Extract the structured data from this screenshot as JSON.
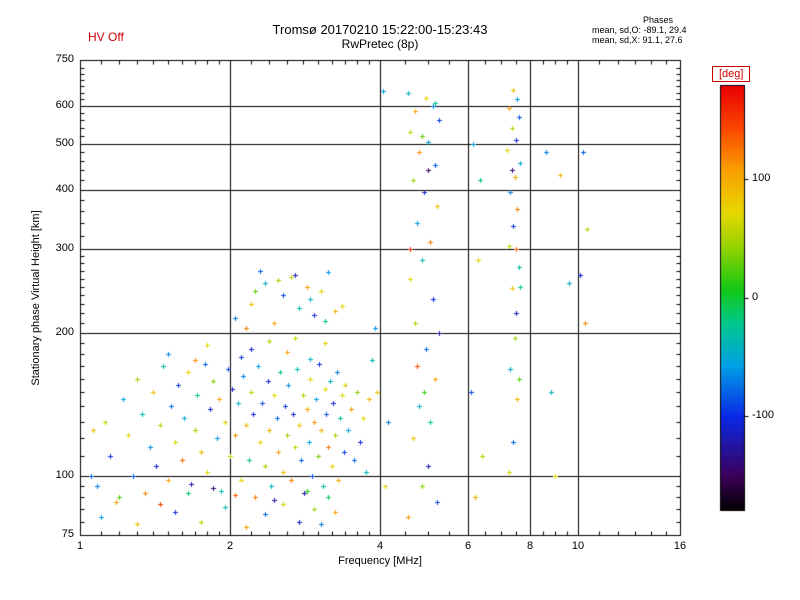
{
  "header": {
    "hv_status": "HV Off",
    "title": "Tromsø 20170210 15:22:00-15:23:43",
    "subtitle": "RwPretec (8p)",
    "phases": {
      "heading": "Phases",
      "o_line": "mean, sd,O: -89.1, 29.4",
      "x_line": "mean, sd,X:  91.1, 27.6"
    }
  },
  "colors": {
    "annotation_red": "#cc0000",
    "axis_black": "#000000"
  },
  "chart_data": {
    "type": "scatter",
    "title": "Tromsø 20170210 15:22:00-15:23:43",
    "subtitle": "RwPretec (8p)",
    "xlabel": "Frequency [MHz]",
    "ylabel": "Stationary phase Virtual Height [km]",
    "x_scale": "log",
    "y_scale": "log",
    "xlim": [
      1,
      16
    ],
    "ylim": [
      75,
      750
    ],
    "x_ticks": [
      1,
      2,
      4,
      6,
      8,
      10,
      16
    ],
    "y_ticks": [
      75,
      100,
      200,
      300,
      400,
      500,
      600,
      750
    ],
    "grid": true,
    "colorbar": {
      "label": "[deg]",
      "ticks": [
        100,
        0,
        -100
      ],
      "range": [
        -180,
        180
      ],
      "orientation": "vertical",
      "position": "right"
    },
    "point_format": [
      "frequency_MHz",
      "virtual_height_km",
      "phase_deg"
    ],
    "points": [
      [
        1.08,
        95,
        -70
      ],
      [
        1.12,
        130,
        60
      ],
      [
        1.15,
        110,
        -100
      ],
      [
        1.18,
        88,
        110
      ],
      [
        1.22,
        145,
        -55
      ],
      [
        1.25,
        122,
        75
      ],
      [
        1.28,
        100,
        -85
      ],
      [
        1.3,
        160,
        45
      ],
      [
        1.33,
        135,
        -40
      ],
      [
        1.35,
        92,
        120
      ],
      [
        1.38,
        115,
        -65
      ],
      [
        1.4,
        150,
        90
      ],
      [
        1.42,
        105,
        -110
      ],
      [
        1.45,
        128,
        55
      ],
      [
        1.47,
        170,
        -30
      ],
      [
        1.5,
        98,
        100
      ],
      [
        1.52,
        140,
        -75
      ],
      [
        1.55,
        118,
        65
      ],
      [
        1.57,
        155,
        -95
      ],
      [
        1.6,
        108,
        130
      ],
      [
        1.62,
        132,
        -50
      ],
      [
        1.65,
        165,
        80
      ],
      [
        1.67,
        96,
        -120
      ],
      [
        1.7,
        125,
        50
      ],
      [
        1.72,
        148,
        -20
      ],
      [
        1.75,
        112,
        95
      ],
      [
        1.78,
        172,
        -80
      ],
      [
        1.8,
        102,
        70
      ],
      [
        1.82,
        138,
        -105
      ],
      [
        1.85,
        158,
        40
      ],
      [
        1.88,
        120,
        -60
      ],
      [
        1.9,
        145,
        105
      ],
      [
        1.92,
        93,
        -35
      ],
      [
        1.95,
        130,
        85
      ],
      [
        1.98,
        168,
        -90
      ],
      [
        2.0,
        110,
        60
      ],
      [
        2.02,
        152,
        -115
      ],
      [
        2.05,
        122,
        115
      ],
      [
        2.08,
        142,
        -45
      ],
      [
        2.1,
        98,
        75
      ],
      [
        2.12,
        162,
        -70
      ],
      [
        2.15,
        128,
        95
      ],
      [
        2.18,
        108,
        -25
      ],
      [
        2.2,
        150,
        55
      ],
      [
        2.22,
        135,
        -100
      ],
      [
        2.25,
        90,
        125
      ],
      [
        2.28,
        170,
        -55
      ],
      [
        2.3,
        118,
        80
      ],
      [
        2.32,
        142,
        -85
      ],
      [
        2.35,
        105,
        50
      ],
      [
        2.38,
        158,
        -110
      ],
      [
        2.4,
        125,
        100
      ],
      [
        2.42,
        95,
        -40
      ],
      [
        2.45,
        148,
        70
      ],
      [
        2.48,
        132,
        -75
      ],
      [
        2.5,
        112,
        110
      ],
      [
        2.52,
        165,
        -20
      ],
      [
        2.55,
        102,
        85
      ],
      [
        2.58,
        140,
        -95
      ],
      [
        2.6,
        122,
        45
      ],
      [
        2.62,
        155,
        -65
      ],
      [
        2.65,
        98,
        120
      ],
      [
        2.68,
        135,
        -105
      ],
      [
        2.7,
        115,
        60
      ],
      [
        2.72,
        168,
        -35
      ],
      [
        2.75,
        128,
        90
      ],
      [
        2.78,
        108,
        -80
      ],
      [
        2.8,
        148,
        55
      ],
      [
        2.82,
        92,
        -120
      ],
      [
        2.85,
        138,
        105
      ],
      [
        2.88,
        118,
        -50
      ],
      [
        2.9,
        160,
        75
      ],
      [
        2.92,
        100,
        -90
      ],
      [
        2.95,
        130,
        115
      ],
      [
        2.98,
        145,
        -60
      ],
      [
        3.0,
        110,
        35
      ],
      [
        3.02,
        172,
        -100
      ],
      [
        3.05,
        125,
        95
      ],
      [
        3.08,
        95,
        -30
      ],
      [
        3.1,
        152,
        70
      ],
      [
        3.12,
        135,
        -85
      ],
      [
        3.15,
        115,
        125
      ],
      [
        3.18,
        158,
        -45
      ],
      [
        3.2,
        105,
        80
      ],
      [
        3.22,
        142,
        -110
      ],
      [
        3.25,
        122,
        50
      ],
      [
        3.28,
        165,
        -70
      ],
      [
        3.3,
        98,
        100
      ],
      [
        3.33,
        132,
        -25
      ],
      [
        3.35,
        148,
        65
      ],
      [
        3.38,
        112,
        -95
      ],
      [
        3.4,
        155,
        85
      ],
      [
        3.45,
        125,
        -55
      ],
      [
        3.5,
        138,
        110
      ],
      [
        3.55,
        108,
        -75
      ],
      [
        3.6,
        150,
        40
      ],
      [
        3.65,
        118,
        -105
      ],
      [
        3.7,
        132,
        75
      ],
      [
        3.75,
        102,
        -40
      ],
      [
        3.8,
        145,
        95
      ],
      [
        1.1,
        82,
        -60
      ],
      [
        1.3,
        79,
        90
      ],
      [
        1.55,
        84,
        -100
      ],
      [
        1.75,
        80,
        55
      ],
      [
        1.95,
        86,
        -35
      ],
      [
        2.15,
        78,
        105
      ],
      [
        2.35,
        83,
        -80
      ],
      [
        2.55,
        87,
        65
      ],
      [
        2.75,
        80,
        -115
      ],
      [
        2.95,
        85,
        45
      ],
      [
        3.05,
        79,
        -70
      ],
      [
        3.25,
        84,
        100
      ],
      [
        1.2,
        90,
        25
      ],
      [
        1.65,
        92,
        -15
      ],
      [
        2.05,
        91,
        135
      ],
      [
        2.45,
        89,
        -125
      ],
      [
        2.85,
        93,
        15
      ],
      [
        3.15,
        90,
        -10
      ],
      [
        1.45,
        87,
        150
      ],
      [
        1.85,
        94,
        -140
      ],
      [
        1.5,
        180,
        -65
      ],
      [
        1.8,
        188,
        70
      ],
      [
        2.1,
        178,
        -95
      ],
      [
        2.4,
        192,
        55
      ],
      [
        2.6,
        182,
        100
      ],
      [
        2.9,
        176,
        -45
      ],
      [
        3.1,
        190,
        80
      ],
      [
        2.2,
        185,
        -110
      ],
      [
        2.7,
        195,
        60
      ],
      [
        1.7,
        175,
        115
      ],
      [
        2.05,
        215,
        -70
      ],
      [
        2.2,
        230,
        85
      ],
      [
        2.35,
        255,
        -50
      ],
      [
        2.45,
        210,
        100
      ],
      [
        2.55,
        240,
        -90
      ],
      [
        2.65,
        262,
        60
      ],
      [
        2.75,
        225,
        -30
      ],
      [
        2.85,
        250,
        110
      ],
      [
        2.95,
        218,
        -105
      ],
      [
        3.05,
        245,
        75
      ],
      [
        3.15,
        268,
        -60
      ],
      [
        3.25,
        222,
        95
      ],
      [
        2.3,
        270,
        -80
      ],
      [
        2.5,
        258,
        50
      ],
      [
        2.15,
        205,
        120
      ],
      [
        2.9,
        235,
        -40
      ],
      [
        3.35,
        228,
        70
      ],
      [
        2.7,
        265,
        -115
      ],
      [
        2.25,
        245,
        30
      ],
      [
        3.1,
        212,
        -20
      ],
      [
        4.55,
        640,
        -40
      ],
      [
        4.95,
        625,
        80
      ],
      [
        5.1,
        600,
        -70
      ],
      [
        4.7,
        585,
        100
      ],
      [
        5.25,
        560,
        -95
      ],
      [
        4.6,
        530,
        60
      ],
      [
        5.0,
        505,
        -55
      ],
      [
        4.8,
        480,
        115
      ],
      [
        5.15,
        450,
        -85
      ],
      [
        4.65,
        420,
        45
      ],
      [
        4.9,
        395,
        -110
      ],
      [
        5.2,
        370,
        90
      ],
      [
        4.75,
        340,
        -60
      ],
      [
        5.05,
        310,
        125
      ],
      [
        4.85,
        285,
        -35
      ],
      [
        4.6,
        260,
        70
      ],
      [
        5.1,
        235,
        -100
      ],
      [
        4.7,
        210,
        55
      ],
      [
        4.95,
        185,
        -75
      ],
      [
        5.15,
        160,
        105
      ],
      [
        4.8,
        140,
        -50
      ],
      [
        4.65,
        120,
        85
      ],
      [
        5.0,
        105,
        -120
      ],
      [
        4.85,
        95,
        40
      ],
      [
        5.2,
        88,
        -90
      ],
      [
        4.55,
        82,
        110
      ],
      [
        4.9,
        150,
        20
      ],
      [
        5.05,
        130,
        -15
      ],
      [
        4.75,
        170,
        140
      ],
      [
        5.25,
        200,
        -130
      ],
      [
        4.6,
        300,
        160
      ],
      [
        5.0,
        440,
        -150
      ],
      [
        4.85,
        520,
        30
      ],
      [
        5.15,
        610,
        -25
      ],
      [
        7.4,
        650,
        90
      ],
      [
        7.55,
        620,
        -60
      ],
      [
        7.25,
        595,
        110
      ],
      [
        7.6,
        570,
        -85
      ],
      [
        7.35,
        540,
        55
      ],
      [
        7.5,
        510,
        -105
      ],
      [
        7.2,
        485,
        75
      ],
      [
        7.65,
        455,
        -45
      ],
      [
        7.45,
        425,
        100
      ],
      [
        7.3,
        395,
        -70
      ],
      [
        7.55,
        365,
        120
      ],
      [
        7.4,
        335,
        -95
      ],
      [
        7.25,
        305,
        60
      ],
      [
        7.6,
        275,
        -30
      ],
      [
        7.35,
        248,
        85
      ],
      [
        7.5,
        220,
        -115
      ],
      [
        7.45,
        195,
        45
      ],
      [
        7.3,
        168,
        -55
      ],
      [
        7.55,
        145,
        95
      ],
      [
        7.4,
        118,
        -80
      ],
      [
        7.25,
        102,
        65
      ],
      [
        7.65,
        250,
        -20
      ],
      [
        7.5,
        300,
        135
      ],
      [
        7.35,
        440,
        -140
      ],
      [
        7.6,
        160,
        25
      ],
      [
        6.15,
        500,
        -60
      ],
      [
        6.3,
        285,
        80
      ],
      [
        6.1,
        150,
        -90
      ],
      [
        6.4,
        110,
        55
      ],
      [
        8.6,
        480,
        -70
      ],
      [
        9.2,
        430,
        95
      ],
      [
        9.6,
        255,
        -50
      ],
      [
        10.2,
        480,
        -85
      ],
      [
        10.4,
        330,
        60
      ],
      [
        10.1,
        265,
        -110
      ],
      [
        6.2,
        90,
        100
      ],
      [
        8.8,
        150,
        -40
      ],
      [
        9.0,
        100,
        70
      ],
      [
        6.35,
        420,
        -25
      ],
      [
        10.3,
        210,
        115
      ],
      [
        4.05,
        645,
        -55
      ],
      [
        4.1,
        95,
        80
      ],
      [
        4.15,
        130,
        -70
      ],
      [
        1.05,
        100,
        -80
      ],
      [
        1.06,
        125,
        95
      ],
      [
        3.9,
        205,
        -60
      ],
      [
        3.95,
        150,
        85
      ],
      [
        3.85,
        175,
        -35
      ]
    ]
  }
}
